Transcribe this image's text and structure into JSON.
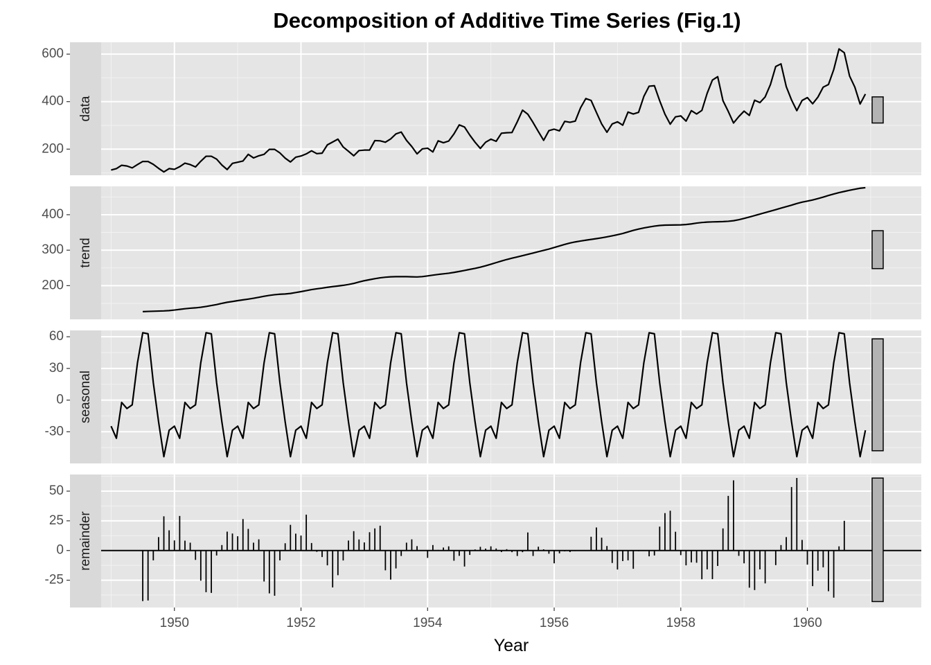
{
  "chart_data": {
    "type": "line",
    "title": "Decomposition of Additive Time Series (Fig.1)",
    "xlabel": "Year",
    "x_ticks": [
      1950,
      1952,
      1954,
      1956,
      1958,
      1960
    ],
    "xlim": [
      1948.35,
      1961.8
    ],
    "start": 1949,
    "frequency": 12,
    "grid": true,
    "panels": [
      {
        "name": "data",
        "kind": "line",
        "ylim": [
          90,
          650
        ],
        "yticks": [
          200,
          400,
          600
        ],
        "range_bar": [
          310,
          420
        ],
        "values": [
          112,
          118,
          132,
          129,
          121,
          135,
          148,
          148,
          136,
          119,
          104,
          118,
          115,
          126,
          141,
          135,
          125,
          149,
          170,
          170,
          158,
          133,
          114,
          140,
          145,
          150,
          178,
          163,
          172,
          178,
          199,
          199,
          184,
          162,
          146,
          166,
          171,
          180,
          193,
          181,
          183,
          218,
          230,
          242,
          209,
          191,
          172,
          194,
          196,
          196,
          236,
          235,
          229,
          243,
          264,
          272,
          237,
          211,
          180,
          201,
          204,
          188,
          235,
          227,
          234,
          264,
          302,
          293,
          259,
          229,
          203,
          229,
          242,
          233,
          267,
          269,
          270,
          315,
          364,
          347,
          312,
          274,
          237,
          278,
          284,
          277,
          317,
          313,
          318,
          374,
          413,
          405,
          355,
          306,
          271,
          306,
          315,
          301,
          356,
          348,
          355,
          422,
          465,
          467,
          404,
          347,
          305,
          336,
          340,
          318,
          362,
          348,
          363,
          435,
          491,
          505,
          404,
          359,
          310,
          337,
          360,
          342,
          406,
          396,
          420,
          472,
          548,
          559,
          463,
          407,
          362,
          405,
          417,
          391,
          419,
          461,
          472,
          535,
          622,
          606,
          508,
          461,
          390,
          432
        ]
      },
      {
        "name": "trend",
        "kind": "line",
        "ylim": [
          105,
          480
        ],
        "yticks": [
          200,
          300,
          400
        ],
        "range_bar": [
          248,
          355
        ],
        "values": [
          null,
          null,
          null,
          null,
          null,
          null,
          126.8,
          127.3,
          127.8,
          128.3,
          128.8,
          129.7,
          131.2,
          133.1,
          134.9,
          136.4,
          137.4,
          139.0,
          141.3,
          143.9,
          146.7,
          150.0,
          153.1,
          155.3,
          157.7,
          159.9,
          162.0,
          164.4,
          167.2,
          170.0,
          172.5,
          174.5,
          175.8,
          176.5,
          178.0,
          180.5,
          183.1,
          186.0,
          188.9,
          191.1,
          193.0,
          195.3,
          197.3,
          199.0,
          200.9,
          203.2,
          206.3,
          210.3,
          213.9,
          216.8,
          219.6,
          222.1,
          223.8,
          224.9,
          225.4,
          225.5,
          225.3,
          224.8,
          224.5,
          225.5,
          227.5,
          229.6,
          231.6,
          233.3,
          235.0,
          237.3,
          240.0,
          242.9,
          245.9,
          248.7,
          252.1,
          256.0,
          260.4,
          264.9,
          269.4,
          273.7,
          277.4,
          281.0,
          284.6,
          288.3,
          292.0,
          295.7,
          299.5,
          303.2,
          307.5,
          312.0,
          316.3,
          320.2,
          323.3,
          325.8,
          328.1,
          330.3,
          332.5,
          334.9,
          337.6,
          340.5,
          343.6,
          347.0,
          351.5,
          355.9,
          359.6,
          362.7,
          365.4,
          367.8,
          369.6,
          370.6,
          370.9,
          371.1,
          371.4,
          372.3,
          374.0,
          376.3,
          378.1,
          379.1,
          379.8,
          380.1,
          380.6,
          381.5,
          383.1,
          385.9,
          389.5,
          393.4,
          397.5,
          401.7,
          405.9,
          410.1,
          414.3,
          418.5,
          422.7,
          427.0,
          431.6,
          435.4,
          438.3,
          441.6,
          445.5,
          449.7,
          454.2,
          458.5,
          462.2,
          465.6,
          468.8,
          471.9,
          474.6,
          476.2,
          null,
          null,
          null,
          null,
          null,
          null
        ]
      },
      {
        "name": "seasonal",
        "kind": "line",
        "ylim": [
          -60,
          66
        ],
        "yticks": [
          60,
          30,
          0,
          -30
        ],
        "range_bar": [
          -48,
          58
        ],
        "values": [
          -24.7,
          -36.2,
          -2.2,
          -8.0,
          -4.5,
          35.4,
          63.8,
          62.8,
          16.5,
          -20.6,
          -53.6,
          -28.6,
          -24.7,
          -36.2,
          -2.2,
          -8.0,
          -4.5,
          35.4,
          63.8,
          62.8,
          16.5,
          -20.6,
          -53.6,
          -28.6,
          -24.7,
          -36.2,
          -2.2,
          -8.0,
          -4.5,
          35.4,
          63.8,
          62.8,
          16.5,
          -20.6,
          -53.6,
          -28.6,
          -24.7,
          -36.2,
          -2.2,
          -8.0,
          -4.5,
          35.4,
          63.8,
          62.8,
          16.5,
          -20.6,
          -53.6,
          -28.6,
          -24.7,
          -36.2,
          -2.2,
          -8.0,
          -4.5,
          35.4,
          63.8,
          62.8,
          16.5,
          -20.6,
          -53.6,
          -28.6,
          -24.7,
          -36.2,
          -2.2,
          -8.0,
          -4.5,
          35.4,
          63.8,
          62.8,
          16.5,
          -20.6,
          -53.6,
          -28.6,
          -24.7,
          -36.2,
          -2.2,
          -8.0,
          -4.5,
          35.4,
          63.8,
          62.8,
          16.5,
          -20.6,
          -53.6,
          -28.6,
          -24.7,
          -36.2,
          -2.2,
          -8.0,
          -4.5,
          35.4,
          63.8,
          62.8,
          16.5,
          -20.6,
          -53.6,
          -28.6,
          -24.7,
          -36.2,
          -2.2,
          -8.0,
          -4.5,
          35.4,
          63.8,
          62.8,
          16.5,
          -20.6,
          -53.6,
          -28.6,
          -24.7,
          -36.2,
          -2.2,
          -8.0,
          -4.5,
          35.4,
          63.8,
          62.8,
          16.5,
          -20.6,
          -53.6,
          -28.6,
          -24.7,
          -36.2,
          -2.2,
          -8.0,
          -4.5,
          35.4,
          63.8,
          62.8,
          16.5,
          -20.6,
          -53.6,
          -28.6,
          -24.7,
          -36.2,
          -2.2,
          -8.0,
          -4.5,
          35.4,
          63.8,
          62.8,
          16.5,
          -20.6,
          -53.6,
          -28.6
        ]
      },
      {
        "name": "remainder",
        "kind": "bar",
        "ylim": [
          -48,
          64
        ],
        "yticks": [
          50,
          25,
          0,
          -25
        ],
        "range_bar": [
          -43,
          61
        ],
        "values": [
          null,
          null,
          null,
          null,
          null,
          null,
          -42.6,
          -42.1,
          -8.3,
          11.3,
          28.8,
          17.0,
          8.5,
          29.1,
          8.3,
          6.6,
          -7.9,
          -25.4,
          -35.1,
          -35.7,
          -4.2,
          4.6,
          15.9,
          14.3,
          12.0,
          26.5,
          18.2,
          6.6,
          9.4,
          -26.1,
          -36.1,
          -38.1,
          -8.3,
          6.1,
          21.6,
          14.2,
          12.6,
          30.2,
          6.3,
          -1.1,
          -5.5,
          -12.5,
          -31.1,
          -20.8,
          -8.4,
          8.4,
          16.3,
          9.3,
          6.8,
          15.4,
          18.6,
          20.9,
          -16.7,
          -24.5,
          -15.1,
          -4.6,
          6.6,
          9.4,
          3.7,
          0.3,
          -6.2,
          4.6,
          0.5,
          2.5,
          3.5,
          -8.6,
          -4.5,
          -13.5,
          -3.7,
          0.9,
          3.1,
          1.6,
          3.5,
          1.7,
          -1.3,
          1.1,
          -1.4,
          -4.6,
          -1.4,
          15.2,
          -4.6,
          3.2,
          1.0,
          -2.7,
          -10.8,
          -2.4,
          -0.7,
          -1.3,
          -0.5,
          -0.2,
          -0.3,
          11.6,
          19.4,
          10.8,
          3.8,
          -10.5,
          -16.0,
          -8.9,
          -8.3,
          -15.4,
          -0.6,
          -0.3,
          -4.9,
          -4.2,
          20.1,
          31.5,
          33.5,
          15.8,
          -3.9,
          -12.5,
          -10.0,
          -10.3,
          -24.2,
          -15.9,
          -24.1,
          -13.0,
          18.6,
          46.0,
          59.1,
          -4.5,
          -10.8,
          -31.3,
          -33.3,
          -15.9,
          -27.7,
          0.4,
          -12.3,
          4.6,
          11.3,
          53.4,
          61.1,
          8.9,
          -11.9,
          -30.0,
          -17.0,
          -14.2,
          -34.3,
          -39.7,
          3.5,
          25.0,
          null,
          null,
          null,
          null,
          null,
          null
        ]
      }
    ]
  }
}
